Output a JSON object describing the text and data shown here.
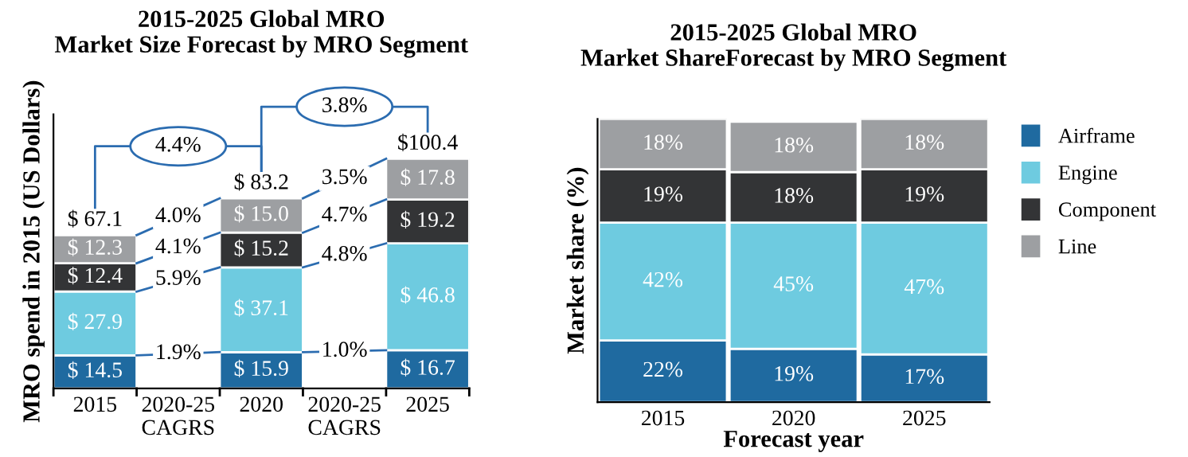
{
  "chart_data": [
    {
      "type": "bar",
      "stacked": true,
      "title": "2015-2025 Global MRO\nMarket Size Forecast by MRO Segment",
      "ylabel": "MRO spend in 2015 (US Dollars)",
      "categories": [
        "2015",
        "2020-25\nCAGRS",
        "2020",
        "2020-25\nCAGRS",
        "2025"
      ],
      "ylim": [
        0,
        120
      ],
      "tick_labels": "x",
      "series": [
        {
          "color": "#1f6aa0",
          "values": [
            14.5,
            null,
            15.9,
            null,
            16.7
          ],
          "value_labels": [
            "$ 14.5",
            null,
            "$ 15.9",
            null,
            "$ 16.7"
          ]
        },
        {
          "color": "#6ecbe0",
          "values": [
            27.9,
            null,
            37.1,
            null,
            46.8
          ],
          "value_labels": [
            "$ 27.9",
            null,
            "$ 37.1",
            null,
            "$ 46.8"
          ]
        },
        {
          "color": "#333436",
          "values": [
            12.4,
            null,
            15.2,
            null,
            19.2
          ],
          "value_labels": [
            "$ 12.4",
            null,
            "$ 15.2",
            null,
            "$ 19.2"
          ]
        },
        {
          "color": "#9d9fa2",
          "values": [
            12.3,
            null,
            15.0,
            null,
            17.8
          ],
          "value_labels": [
            "$ 12.3",
            null,
            "$ 15.0",
            null,
            "$ 17.8"
          ]
        }
      ],
      "totals": [
        "$ 67.1",
        null,
        "$ 83.2",
        null,
        "$100.4"
      ],
      "annotations": [
        "1.9%",
        "5.9%",
        "4.1%",
        "4.0%",
        "1.0%",
        "4.8%",
        "4.7%",
        "3.5%",
        "4.4%",
        "3.8%"
      ]
    },
    {
      "type": "bar",
      "stacked": true,
      "title": "2015-2025 Global MRO\nMarket ShareForecast by MRO Segment",
      "xlabel": "Forecast year",
      "ylabel": "Market share (%)",
      "categories": [
        "2015",
        "2020",
        "2025"
      ],
      "ylim": [
        0,
        101
      ],
      "tick_labels": "x",
      "legend": "right",
      "series": [
        {
          "name": "Airframe",
          "color": "#1f6aa0",
          "values": [
            22,
            19,
            17
          ],
          "value_labels": [
            "22%",
            "19%",
            "17%"
          ]
        },
        {
          "name": "Engine",
          "color": "#6ecbe0",
          "values": [
            42,
            45,
            47
          ],
          "value_labels": [
            "42%",
            "45%",
            "47%"
          ]
        },
        {
          "name": "Component",
          "color": "#333436",
          "values": [
            19,
            18,
            19
          ],
          "value_labels": [
            "19%",
            "18%",
            "19%"
          ]
        },
        {
          "name": "Line",
          "color": "#9d9fa2",
          "values": [
            18,
            18,
            18
          ],
          "value_labels": [
            "18%",
            "18%",
            "18%"
          ]
        }
      ]
    }
  ]
}
